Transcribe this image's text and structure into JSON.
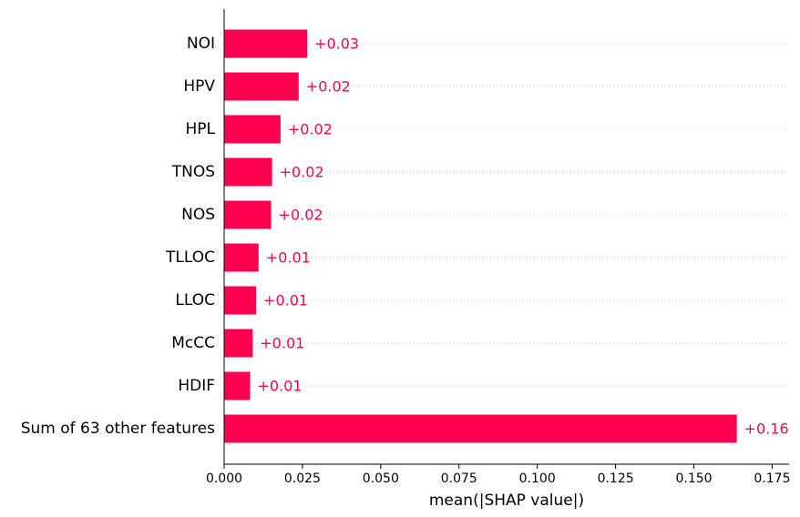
{
  "chart_data": {
    "type": "bar",
    "orientation": "horizontal",
    "xlabel": "mean(|SHAP value|)",
    "xlim": [
      0,
      0.18
    ],
    "xticks": [
      0.0,
      0.025,
      0.05,
      0.075,
      0.1,
      0.125,
      0.15,
      0.175
    ],
    "xtick_labels": [
      "0.000",
      "0.025",
      "0.050",
      "0.075",
      "0.100",
      "0.125",
      "0.150",
      "0.175"
    ],
    "grid": "dotted horizontal guides",
    "bar_color": "#ff0051",
    "categories": [
      "NOI",
      "HPV",
      "HPL",
      "TNOS",
      "NOS",
      "TLLOC",
      "LLOC",
      "McCC",
      "HDIF",
      "Sum of 63 other features"
    ],
    "values": [
      0.0265,
      0.0238,
      0.018,
      0.0153,
      0.015,
      0.011,
      0.0102,
      0.0091,
      0.0083,
      0.1637
    ],
    "value_labels": [
      "+0.03",
      "+0.02",
      "+0.02",
      "+0.02",
      "+0.02",
      "+0.01",
      "+0.01",
      "+0.01",
      "+0.01",
      "+0.16"
    ]
  }
}
